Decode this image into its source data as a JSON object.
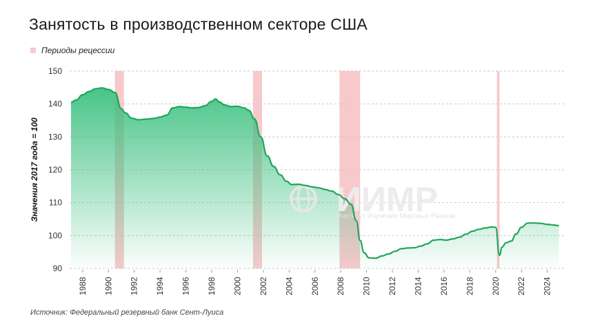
{
  "title": "Занятость в производственном секторе США",
  "legend_label": "Периоды рецессии",
  "source": "Источник: Федеральный резервный банк Сент-Луиса",
  "watermark": {
    "text": "ИИМР",
    "subtext": "Институт Изучения Мировых Рынков"
  },
  "colors": {
    "line": "#1fa65a",
    "fill_top": "#3cc07f",
    "recession": "#f8c9cc",
    "grid": "#c9c9c9"
  },
  "chart_data": {
    "type": "area",
    "title": "Занятость в производственном секторе США",
    "ylabel": "Значения 2017 года = 100",
    "xlabel": "",
    "ylim": [
      90,
      150
    ],
    "xlim": [
      1987.1,
      2025.3
    ],
    "yticks": [
      90,
      100,
      110,
      120,
      130,
      140,
      150
    ],
    "xticks": [
      1988,
      1990,
      1992,
      1994,
      1996,
      1998,
      2000,
      2002,
      2004,
      2006,
      2008,
      2010,
      2012,
      2014,
      2016,
      2018,
      2020,
      2022,
      2024
    ],
    "grid": "horizontal dashed",
    "legend": "top-left",
    "recessions": [
      [
        1990.5,
        1991.2
      ],
      [
        2001.2,
        2001.9
      ],
      [
        2007.9,
        2009.5
      ],
      [
        2020.1,
        2020.3
      ]
    ],
    "series": [
      {
        "x": [
          1987.1,
          1987.5,
          1988.0,
          1988.5,
          1989.0,
          1989.5,
          1990.0,
          1990.5,
          1991.0,
          1991.3,
          1991.8,
          1992.3,
          1993.0,
          1993.5,
          1994.0,
          1994.5,
          1995.0,
          1995.5,
          1996.0,
          1996.5,
          1997.0,
          1997.5,
          1998.0,
          1998.3,
          1998.6,
          1999.0,
          1999.5,
          2000.0,
          2000.5,
          2000.9,
          2001.3,
          2001.8,
          2002.3,
          2002.8,
          2003.3,
          2003.8,
          2004.2,
          2004.7,
          2005.3,
          2005.8,
          2006.3,
          2006.8,
          2007.3,
          2007.8,
          2008.3,
          2008.8,
          2009.2,
          2009.5,
          2009.8,
          2010.2,
          2010.7,
          2011.2,
          2011.7,
          2012.2,
          2012.7,
          2013.2,
          2013.7,
          2014.2,
          2014.7,
          2015.2,
          2015.7,
          2016.2,
          2016.7,
          2017.2,
          2017.7,
          2018.2,
          2018.7,
          2019.2,
          2019.7,
          2020.0,
          2020.3,
          2020.5,
          2020.8,
          2021.2,
          2021.6,
          2022.0,
          2022.5,
          2023.0,
          2023.5,
          2024.0,
          2024.5,
          2024.9
        ],
        "values": [
          140.5,
          141.2,
          142.8,
          143.8,
          144.6,
          144.9,
          144.4,
          143.5,
          138.5,
          137.3,
          135.7,
          135.2,
          135.4,
          135.6,
          136.0,
          136.6,
          138.8,
          139.2,
          139.0,
          138.8,
          138.9,
          139.5,
          140.8,
          141.5,
          140.6,
          139.7,
          139.2,
          139.3,
          138.8,
          138.0,
          135.5,
          130.0,
          124.2,
          121.0,
          118.5,
          116.5,
          115.5,
          115.6,
          115.2,
          114.8,
          114.5,
          114.0,
          113.5,
          112.5,
          111.2,
          109.5,
          104.5,
          98.5,
          94.8,
          93.2,
          93.1,
          93.8,
          94.4,
          95.2,
          96.0,
          96.2,
          96.3,
          96.8,
          97.5,
          98.6,
          98.8,
          98.6,
          99.0,
          99.5,
          100.4,
          101.3,
          101.9,
          102.3,
          102.6,
          102.5,
          94.0,
          96.5,
          97.8,
          98.3,
          100.5,
          102.5,
          103.8,
          103.8,
          103.7,
          103.4,
          103.2,
          103.0
        ]
      }
    ]
  }
}
